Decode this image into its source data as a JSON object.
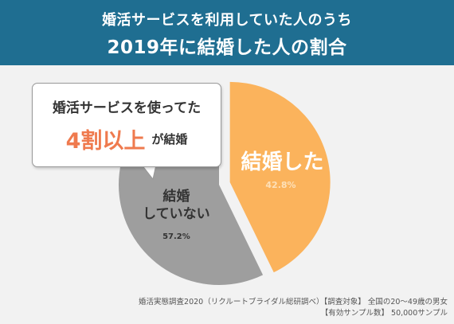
{
  "header": {
    "title_line1": "婚活サービスを利用していた人のうち",
    "title_line2": "2019年に結婚した人の割合"
  },
  "callout": {
    "line1": "婚活サービスを使ってた",
    "emphasis": "4割以上",
    "suffix": "が結婚"
  },
  "source": {
    "line1": "婚活実態調査2020（リクルートブライダル総研調べ）【調査対象】 全国の20～49歳の男女",
    "line2": "【有効サンプル数】 50,000サンプル"
  },
  "colors": {
    "header_bg": "#1f6e91",
    "married": "#fbb35c",
    "not_married": "#9e9e9e",
    "accent": "#ef7a4e"
  },
  "chart_data": {
    "type": "pie",
    "slices": [
      {
        "label": "結婚した",
        "value": 42.8,
        "value_label": "42.8%",
        "color": "#fbb35c",
        "exploded": true
      },
      {
        "label": "結婚 していない",
        "label_lines": [
          "結婚",
          "していない"
        ],
        "value": 57.2,
        "value_label": "57.2%",
        "color": "#9e9e9e",
        "exploded": false
      }
    ]
  }
}
